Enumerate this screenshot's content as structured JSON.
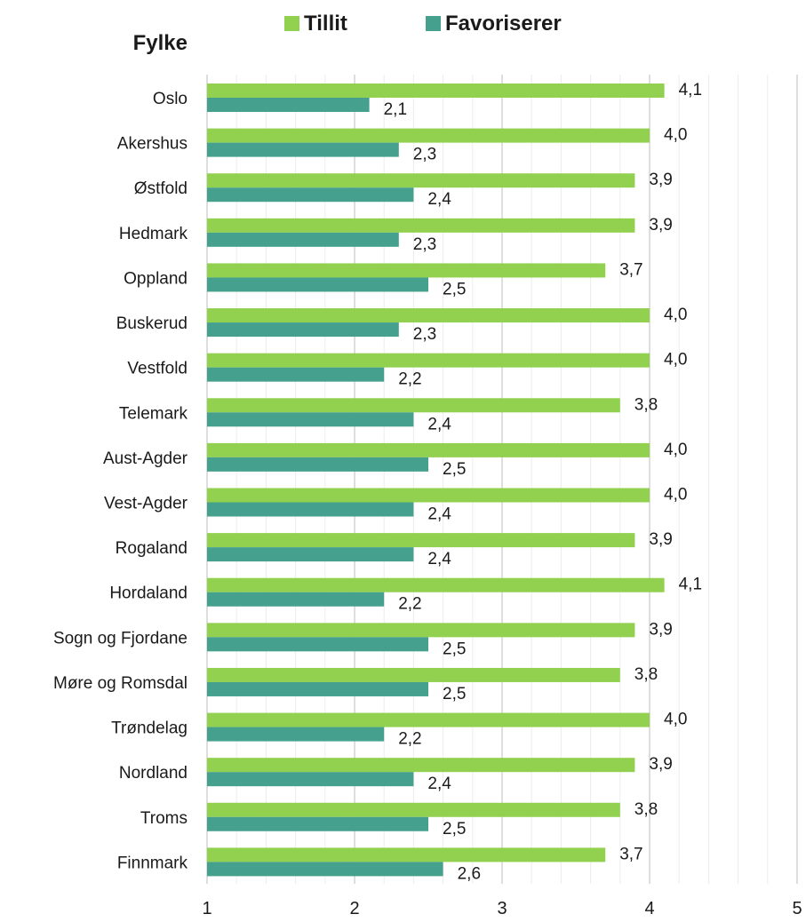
{
  "chart_data": {
    "type": "bar",
    "orientation": "horizontal",
    "y_axis_title": "Fylke",
    "categories": [
      "Oslo",
      "Akershus",
      "Østfold",
      "Hedmark",
      "Oppland",
      "Buskerud",
      "Vestfold",
      "Telemark",
      "Aust-Agder",
      "Vest-Agder",
      "Rogaland",
      "Hordaland",
      "Sogn og Fjordane",
      "Møre og Romsdal",
      "Trøndelag",
      "Nordland",
      "Troms",
      "Finnmark"
    ],
    "series": [
      {
        "name": "Tillit",
        "color": "#92d050",
        "values": [
          4.1,
          4.0,
          3.9,
          3.9,
          3.7,
          4.0,
          4.0,
          3.8,
          4.0,
          4.0,
          3.9,
          4.1,
          3.9,
          3.8,
          4.0,
          3.9,
          3.8,
          3.7
        ],
        "labels": [
          "4,1",
          "4,0",
          "3,9",
          "3,9",
          "3,7",
          "4,0",
          "4,0",
          "3,8",
          "4,0",
          "4,0",
          "3,9",
          "4,1",
          "3,9",
          "3,8",
          "4,0",
          "3,9",
          "3,8",
          "3,7"
        ]
      },
      {
        "name": "Favoriserer",
        "color": "#45a18e",
        "values": [
          2.1,
          2.3,
          2.4,
          2.3,
          2.5,
          2.3,
          2.2,
          2.4,
          2.5,
          2.4,
          2.4,
          2.2,
          2.5,
          2.5,
          2.2,
          2.4,
          2.5,
          2.6
        ],
        "labels": [
          "2,1",
          "2,3",
          "2,4",
          "2,3",
          "2,5",
          "2,3",
          "2,2",
          "2,4",
          "2,5",
          "2,4",
          "2,4",
          "2,2",
          "2,5",
          "2,5",
          "2,2",
          "2,4",
          "2,5",
          "2,6"
        ]
      }
    ],
    "xlim": [
      1,
      5
    ],
    "xticks": [
      "1",
      "2",
      "3",
      "4",
      "5"
    ],
    "grid": "vertical",
    "legend_position": "top"
  }
}
